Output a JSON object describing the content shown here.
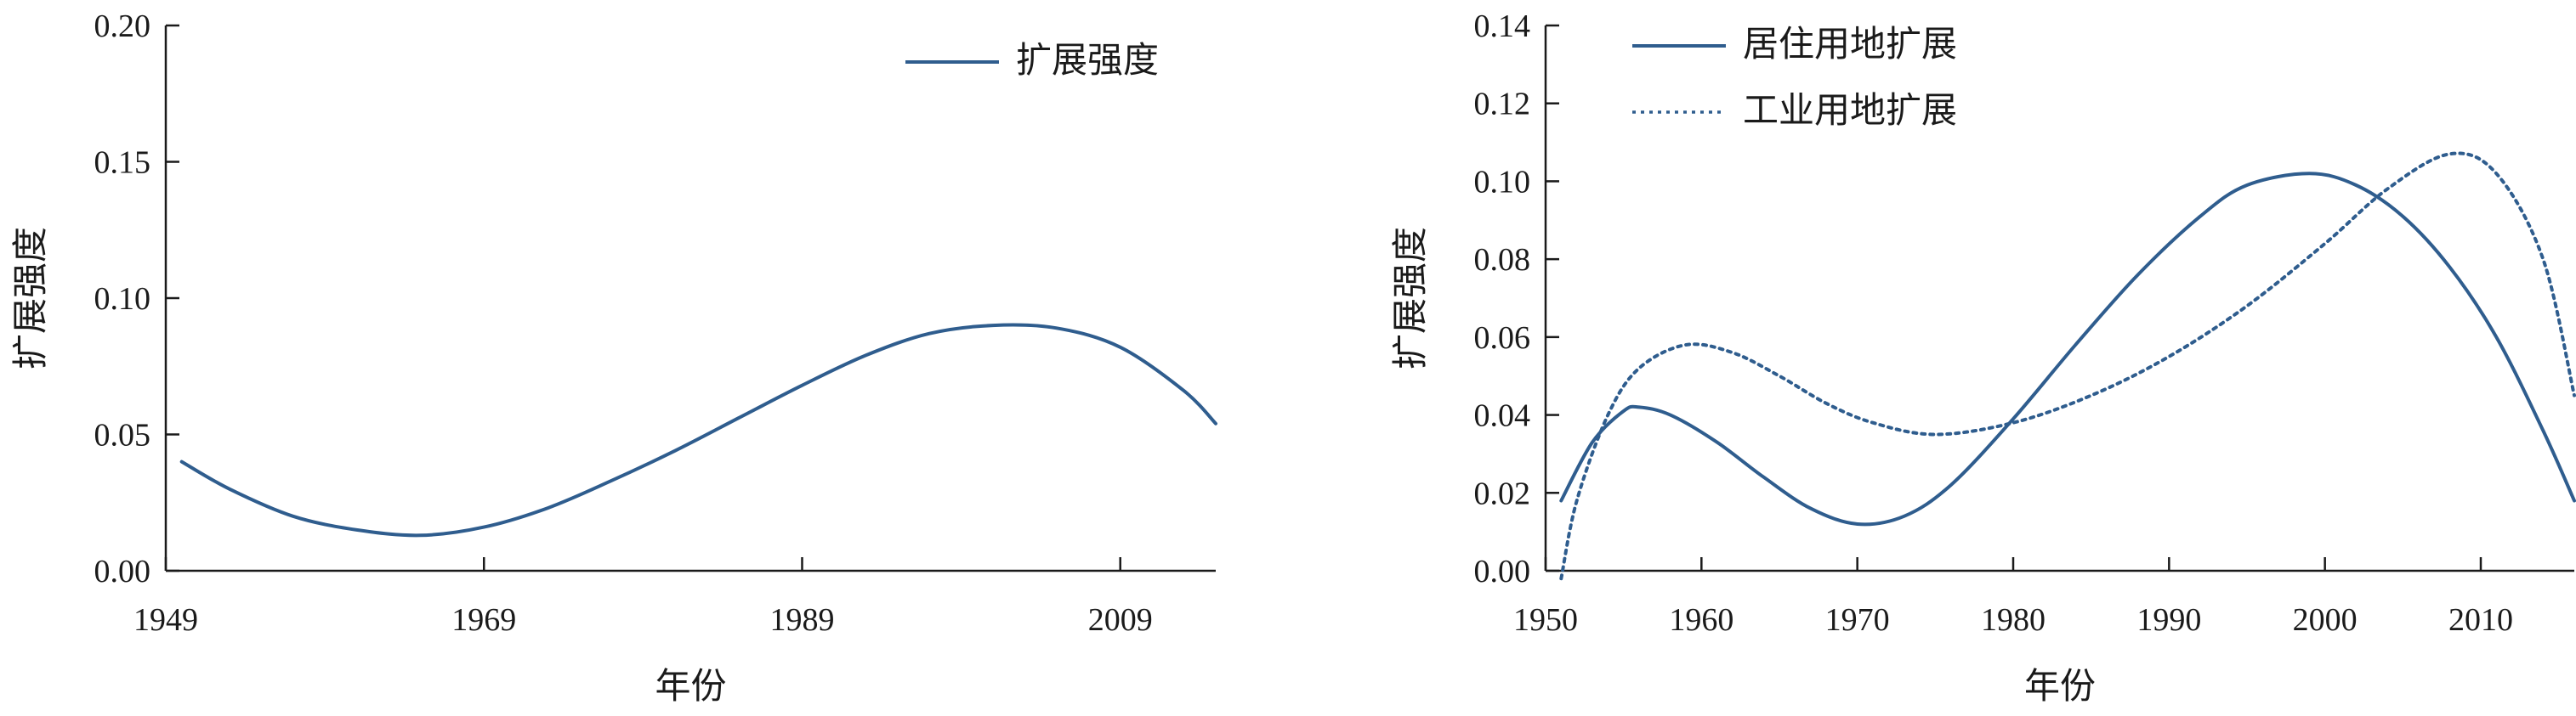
{
  "chart_data": [
    {
      "type": "line",
      "title": "",
      "xlabel": "年份",
      "ylabel": "扩展强度",
      "xlim": [
        1949,
        2015
      ],
      "ylim": [
        0,
        0.2
      ],
      "xticks": [
        1949,
        1969,
        1989,
        2009
      ],
      "xtick_labels": [
        "1949",
        "1969",
        "1989",
        "2009"
      ],
      "yticks": [
        0,
        0.05,
        0.1,
        0.15,
        0.2
      ],
      "ytick_labels": [
        "0.00",
        "0.05",
        "0.10",
        "0.15",
        "0.20"
      ],
      "legend_position": "top-right",
      "grid": false,
      "series": [
        {
          "name": "扩展强度",
          "color": "#2f5d8e",
          "style": "solid",
          "x": [
            1950,
            1953,
            1957,
            1961,
            1965,
            1969,
            1973,
            1977,
            1981,
            1985,
            1989,
            1993,
            1997,
            2001,
            2005,
            2009,
            2013,
            2015
          ],
          "y": [
            0.04,
            0.03,
            0.02,
            0.015,
            0.013,
            0.016,
            0.023,
            0.033,
            0.044,
            0.056,
            0.068,
            0.079,
            0.087,
            0.09,
            0.089,
            0.082,
            0.066,
            0.054
          ]
        }
      ]
    },
    {
      "type": "line",
      "title": "",
      "xlabel": "年份",
      "ylabel": "扩展强度",
      "xlim": [
        1950,
        2016
      ],
      "ylim": [
        0,
        0.14
      ],
      "xticks": [
        1950,
        1960,
        1970,
        1980,
        1990,
        2000,
        2010
      ],
      "xtick_labels": [
        "1950",
        "1960",
        "1970",
        "1980",
        "1990",
        "2000",
        "2010"
      ],
      "yticks": [
        0,
        0.02,
        0.04,
        0.06,
        0.08,
        0.1,
        0.12,
        0.14
      ],
      "ytick_labels": [
        "0.00",
        "0.02",
        "0.04",
        "0.06",
        "0.08",
        "0.10",
        "0.12",
        "0.14"
      ],
      "legend_position": "top-left",
      "grid": false,
      "series": [
        {
          "name": "居住用地扩展",
          "color": "#2f5d8e",
          "style": "solid",
          "x": [
            1951,
            1953,
            1955,
            1956,
            1958,
            1961,
            1964,
            1967,
            1970,
            1973,
            1976,
            1980,
            1984,
            1988,
            1992,
            1995,
            1999,
            2002,
            2005,
            2008,
            2011,
            2014,
            2016
          ],
          "y": [
            0.018,
            0.033,
            0.041,
            0.042,
            0.04,
            0.033,
            0.024,
            0.016,
            0.012,
            0.014,
            0.022,
            0.039,
            0.058,
            0.076,
            0.091,
            0.099,
            0.102,
            0.099,
            0.091,
            0.078,
            0.06,
            0.036,
            0.018
          ]
        },
        {
          "name": "工业用地扩展",
          "color": "#2f5d8e",
          "style": "dotted",
          "x": [
            1951,
            1952,
            1954,
            1956,
            1959,
            1962,
            1965,
            1968,
            1971,
            1975,
            1980,
            1985,
            1990,
            1995,
            2000,
            2004,
            2008,
            2011,
            2014,
            2016
          ],
          "y": [
            -0.002,
            0.018,
            0.04,
            0.052,
            0.058,
            0.056,
            0.05,
            0.043,
            0.038,
            0.035,
            0.038,
            0.045,
            0.055,
            0.068,
            0.084,
            0.098,
            0.107,
            0.102,
            0.08,
            0.045
          ]
        }
      ]
    }
  ]
}
